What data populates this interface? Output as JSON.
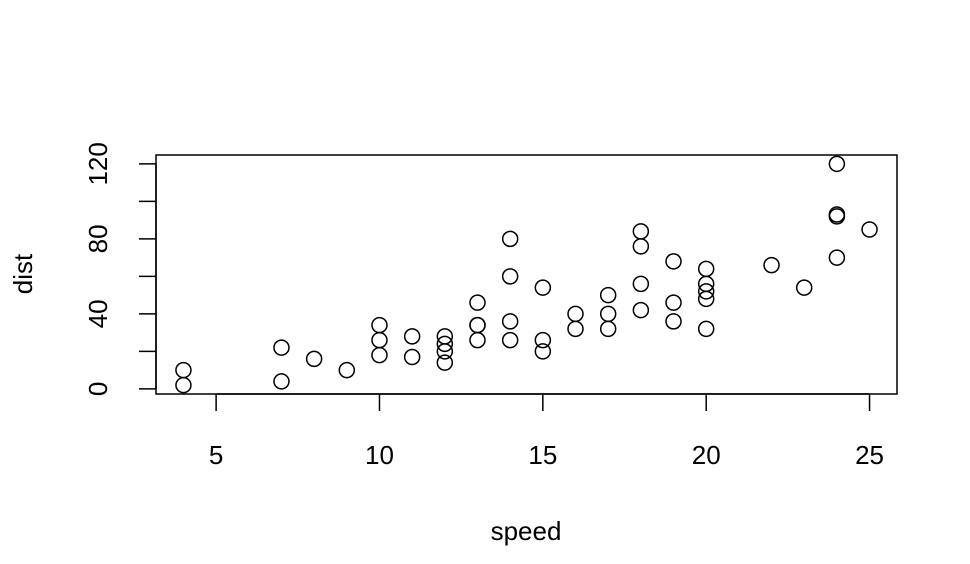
{
  "chart_data": {
    "type": "scatter",
    "x_label": "speed",
    "y_label": "dist",
    "x": [
      4,
      4,
      7,
      7,
      8,
      9,
      10,
      10,
      10,
      11,
      11,
      12,
      12,
      12,
      12,
      13,
      13,
      13,
      13,
      14,
      14,
      14,
      14,
      15,
      15,
      15,
      16,
      16,
      17,
      17,
      17,
      18,
      18,
      18,
      18,
      19,
      19,
      19,
      20,
      20,
      20,
      20,
      20,
      22,
      23,
      24,
      24,
      24,
      24,
      25
    ],
    "y": [
      2,
      10,
      4,
      22,
      16,
      10,
      18,
      26,
      34,
      17,
      28,
      14,
      20,
      24,
      28,
      26,
      34,
      34,
      46,
      26,
      36,
      60,
      80,
      20,
      26,
      54,
      32,
      40,
      32,
      40,
      50,
      42,
      56,
      76,
      84,
      36,
      46,
      68,
      32,
      48,
      52,
      56,
      64,
      66,
      54,
      70,
      92,
      93,
      120,
      85
    ],
    "color": "#000000",
    "xlim": [
      3.16,
      25.84
    ],
    "ylim": [
      -2.72,
      124.72
    ],
    "xticks": [
      5,
      10,
      15,
      20,
      25
    ],
    "yticks": [
      0,
      {
        "value": 20,
        "label": null
      },
      40,
      {
        "value": 60,
        "label": null
      },
      80,
      {
        "value": 100,
        "label": null
      },
      120
    ]
  }
}
